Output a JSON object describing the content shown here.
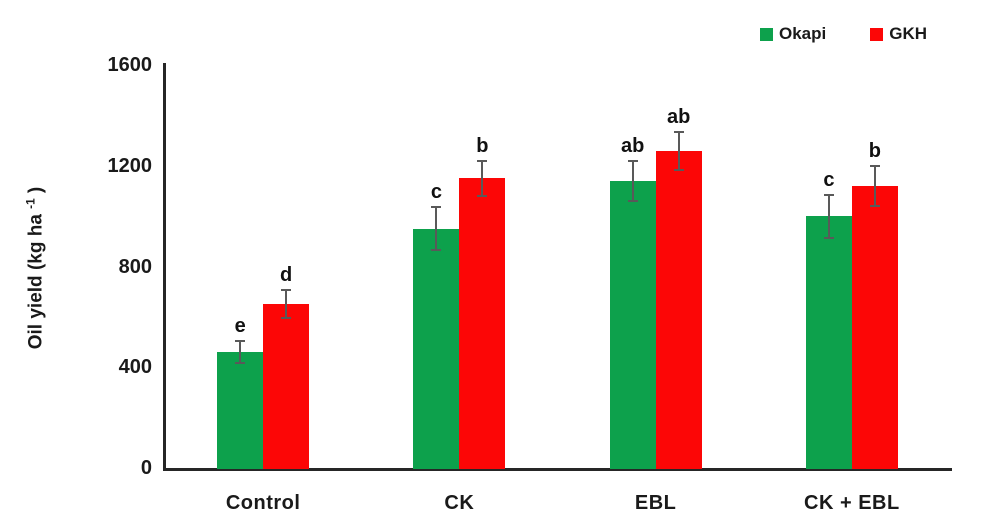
{
  "chart_data": {
    "type": "bar",
    "title": "",
    "ylabel_prefix": "Oil yield (kg ha ",
    "ylabel_sup": "-1",
    "ylabel_suffix": " )",
    "xlabel": "",
    "categories": [
      "Control",
      "CK",
      "EBL",
      "CK + EBL"
    ],
    "series": [
      {
        "name": "Okapi",
        "color": "#0da14c",
        "values": [
          460,
          950,
          1140,
          1000
        ],
        "errors": [
          45,
          85,
          80,
          85
        ],
        "letters": [
          "e",
          "c",
          "ab",
          "c"
        ]
      },
      {
        "name": "GKH",
        "color": "#fc0606",
        "values": [
          650,
          1150,
          1260,
          1120
        ],
        "errors": [
          55,
          70,
          75,
          80
        ],
        "letters": [
          "d",
          "b",
          "ab",
          "b"
        ]
      }
    ],
    "ylim": [
      0,
      1600
    ],
    "yticks": [
      0,
      400,
      800,
      1200,
      1600
    ],
    "grid": false,
    "legend_position": "top-right",
    "error_bar_color": "#595959",
    "axis_color": "#262626",
    "text_color": "#1a1a1a"
  }
}
